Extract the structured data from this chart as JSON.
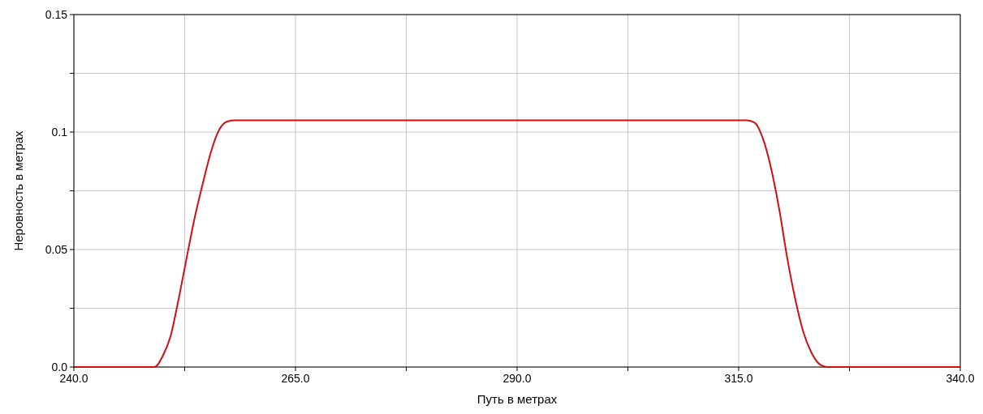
{
  "chart_data": {
    "type": "line",
    "xlabel": "Путь в метрах",
    "ylabel": "Неровность в метрах",
    "x": [
      240,
      249.1,
      250,
      250.9,
      251.8,
      252.7,
      253.6,
      254.6,
      255.5,
      256.4,
      257.3,
      258.2,
      315.9,
      316.8,
      317.7,
      318.7,
      319.6,
      320.5,
      321.4,
      322.3,
      323.2,
      324.2,
      325.1,
      340
    ],
    "series": [
      {
        "color": "#d01010",
        "values": [
          0,
          0,
          0.0045,
          0.013,
          0.0286,
          0.046,
          0.063,
          0.079,
          0.092,
          0.101,
          0.1045,
          0.105,
          0.105,
          0.104,
          0.0976,
          0.0838,
          0.0666,
          0.0459,
          0.0286,
          0.0148,
          0.0062,
          0.001,
          0,
          0
        ]
      }
    ],
    "xlim": [
      240,
      340
    ],
    "xticks": [
      {
        "value": 240,
        "label": "240.0"
      },
      {
        "value": 252.5,
        "label": null
      },
      {
        "value": 265,
        "label": "265.0"
      },
      {
        "value": 277.5,
        "label": null
      },
      {
        "value": 290,
        "label": "290.0"
      },
      {
        "value": 302.5,
        "label": null
      },
      {
        "value": 315,
        "label": "315.0"
      },
      {
        "value": 327.5,
        "label": null
      },
      {
        "value": 340,
        "label": "340.0"
      }
    ],
    "ylim": [
      0,
      0.15
    ],
    "yticks": [
      {
        "value": 0,
        "label": "0.0"
      },
      {
        "value": 0.025,
        "label": null
      },
      0.05,
      {
        "value": 0.075,
        "label": null
      },
      0.1,
      {
        "value": 0.125,
        "label": null
      },
      0.15
    ],
    "grid": true,
    "marker": "none",
    "line_style": "solid"
  }
}
